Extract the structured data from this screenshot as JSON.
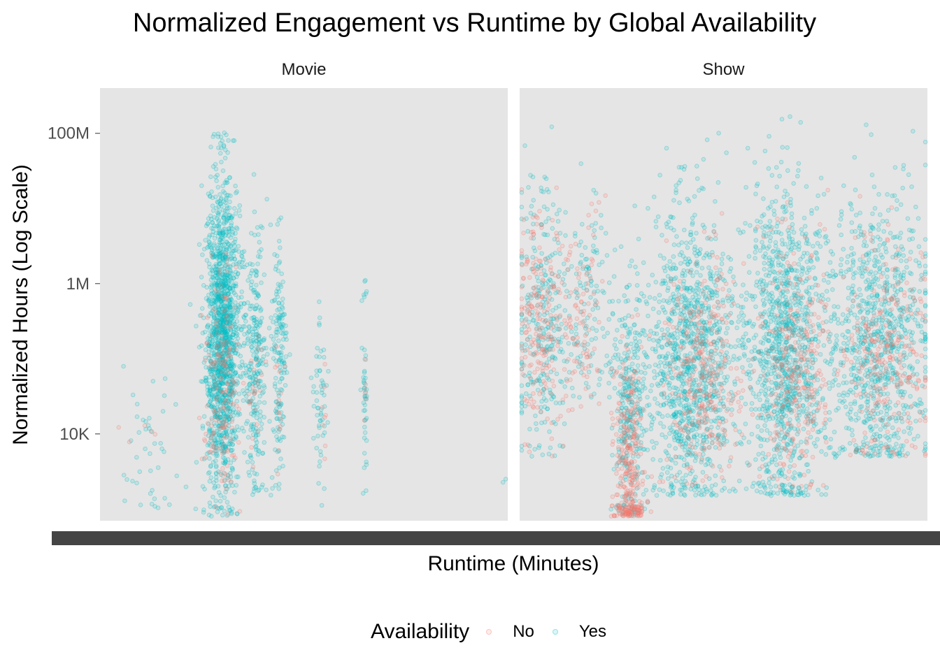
{
  "chart_data": {
    "type": "scatter",
    "title": "Normalized Engagement vs Runtime by Global Availability",
    "xlabel": "Runtime (Minutes)",
    "ylabel": "Normalized Hours (Log Scale)",
    "y_scale": "log10",
    "ylim": [
      700,
      400000000
    ],
    "y_ticks": [
      10000,
      1000000,
      100000000
    ],
    "y_tick_labels": [
      "10K",
      "1M",
      "100M"
    ],
    "grid": false,
    "legend": {
      "title": "Availability",
      "position": "bottom",
      "entries": [
        "No",
        "Yes"
      ]
    },
    "colors": {
      "No": "#F8766D",
      "Yes": "#00BFC4",
      "panel_bg": "#E5E5E5",
      "x_tick_band": "#444444"
    },
    "facets": [
      "Movie",
      "Show"
    ],
    "series": [
      {
        "name": "No",
        "facet": "Movie",
        "clusters": [
          {
            "x_center": 0.3,
            "x_spread": 0.04,
            "y_min": 800,
            "y_max": 3000000,
            "y_mode": 50000,
            "n": 180
          },
          {
            "x_center": 0.38,
            "x_spread": 0.02,
            "y_min": 1500,
            "y_max": 300000,
            "y_mode": 40000,
            "n": 25
          },
          {
            "x_center": 0.44,
            "x_spread": 0.01,
            "y_min": 2000,
            "y_max": 200000,
            "y_mode": 30000,
            "n": 15
          },
          {
            "x_center": 0.55,
            "x_spread": 0.01,
            "y_min": 1500,
            "y_max": 130000,
            "y_mode": 20000,
            "n": 8
          },
          {
            "x_center": 0.65,
            "x_spread": 0.005,
            "y_min": 2000,
            "y_max": 120000,
            "y_mode": 30000,
            "n": 6
          },
          {
            "x_center": 0.1,
            "x_spread": 0.05,
            "y_min": 6000,
            "y_max": 20000,
            "y_mode": 10000,
            "n": 5
          }
        ]
      },
      {
        "name": "Yes",
        "facet": "Movie",
        "clusters": [
          {
            "x_center": 0.3,
            "x_spread": 0.035,
            "y_min": 800,
            "y_max": 110000000,
            "y_mode": 200000,
            "n": 1500
          },
          {
            "x_center": 0.38,
            "x_spread": 0.025,
            "y_min": 1500,
            "y_max": 80000000,
            "y_mode": 100000,
            "n": 280
          },
          {
            "x_center": 0.44,
            "x_spread": 0.015,
            "y_min": 1500,
            "y_max": 60000000,
            "y_mode": 80000,
            "n": 160
          },
          {
            "x_center": 0.54,
            "x_spread": 0.012,
            "y_min": 1000,
            "y_max": 600000,
            "y_mode": 30000,
            "n": 55
          },
          {
            "x_center": 0.65,
            "x_spread": 0.006,
            "y_min": 1500,
            "y_max": 2000000,
            "y_mode": 40000,
            "n": 45
          },
          {
            "x_center": 0.12,
            "x_spread": 0.07,
            "y_min": 1000,
            "y_max": 2000000,
            "y_mode": 10000,
            "n": 45
          },
          {
            "x_center": 0.995,
            "x_spread": 0.006,
            "y_min": 2000,
            "y_max": 5000,
            "y_mode": 3000,
            "n": 2
          }
        ]
      },
      {
        "name": "No",
        "facet": "Show",
        "clusters": [
          {
            "x_center": 0.05,
            "x_spread": 0.05,
            "y_min": 5000,
            "y_max": 20000000,
            "y_mode": 300000,
            "n": 220
          },
          {
            "x_center": 0.27,
            "x_spread": 0.03,
            "y_min": 800,
            "y_max": 8000000,
            "y_mode": 3000,
            "n": 330
          },
          {
            "x_center": 0.45,
            "x_spread": 0.07,
            "y_min": 2000,
            "y_max": 10000000,
            "y_mode": 60000,
            "n": 320
          },
          {
            "x_center": 0.67,
            "x_spread": 0.07,
            "y_min": 1500,
            "y_max": 20000000,
            "y_mode": 80000,
            "n": 300
          },
          {
            "x_center": 0.9,
            "x_spread": 0.09,
            "y_min": 5000,
            "y_max": 50000000,
            "y_mode": 100000,
            "n": 280
          },
          {
            "x_center": 0.15,
            "x_spread": 0.05,
            "y_min": 20000,
            "y_max": 40000000,
            "y_mode": 300000,
            "n": 90
          }
        ]
      },
      {
        "name": "Yes",
        "facet": "Show",
        "clusters": [
          {
            "x_center": 0.06,
            "x_spread": 0.06,
            "y_min": 5000,
            "y_max": 200000000,
            "y_mode": 300000,
            "n": 300
          },
          {
            "x_center": 0.27,
            "x_spread": 0.035,
            "y_min": 800,
            "y_max": 10000000,
            "y_mode": 20000,
            "n": 320
          },
          {
            "x_center": 0.42,
            "x_spread": 0.09,
            "y_min": 1500,
            "y_max": 150000000,
            "y_mode": 100000,
            "n": 1100
          },
          {
            "x_center": 0.65,
            "x_spread": 0.08,
            "y_min": 1500,
            "y_max": 250000000,
            "y_mode": 150000,
            "n": 1100
          },
          {
            "x_center": 0.88,
            "x_spread": 0.11,
            "y_min": 5000,
            "y_max": 200000000,
            "y_mode": 150000,
            "n": 900
          },
          {
            "x_center": 0.17,
            "x_spread": 0.05,
            "y_min": 30000,
            "y_max": 150000000,
            "y_mode": 500000,
            "n": 120
          }
        ]
      }
    ]
  }
}
